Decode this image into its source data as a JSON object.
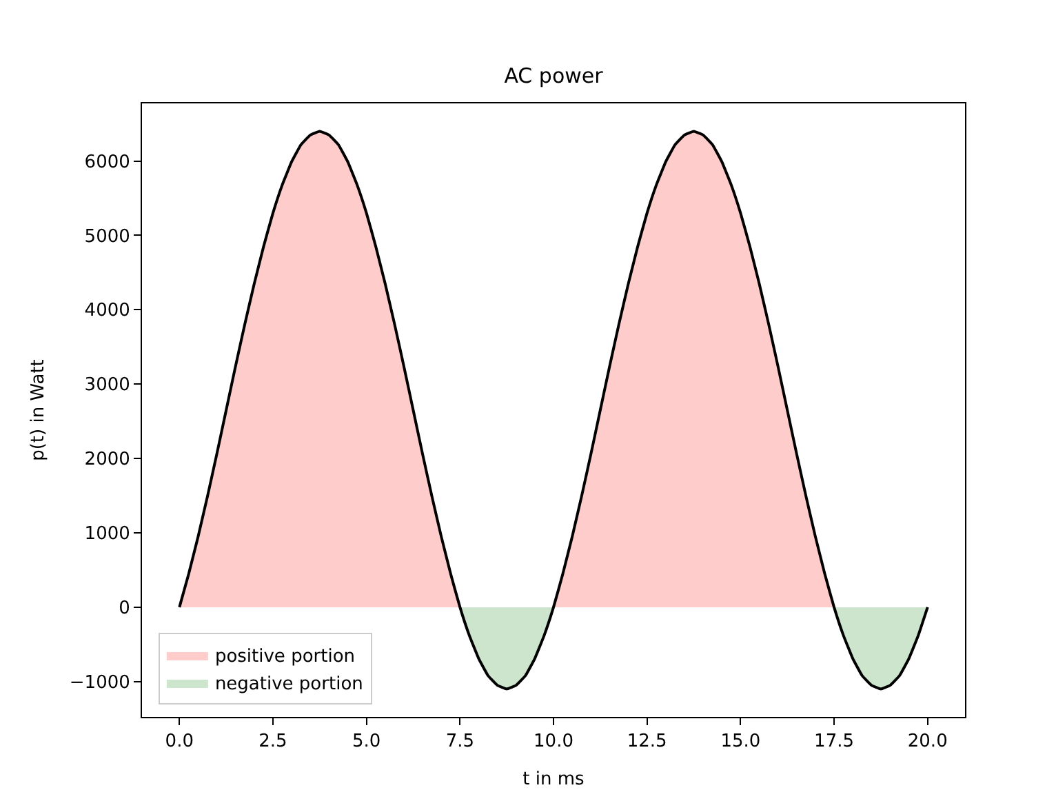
{
  "chart_data": {
    "type": "line",
    "title": "AC power",
    "xlabel": "t in ms",
    "ylabel": "p(t) in Watt",
    "x": [
      0,
      0.25,
      0.5,
      0.75,
      1,
      1.25,
      1.5,
      1.75,
      2,
      2.25,
      2.5,
      2.75,
      3,
      3.25,
      3.5,
      3.75,
      4,
      4.25,
      4.5,
      4.75,
      5,
      5.25,
      5.5,
      5.75,
      6,
      6.25,
      6.5,
      6.75,
      7,
      7.25,
      7.5,
      7.75,
      8,
      8.25,
      8.5,
      8.75,
      9,
      9.25,
      9.5,
      9.75,
      10,
      10.25,
      10.5,
      10.75,
      11,
      11.25,
      11.5,
      11.75,
      12,
      12.25,
      12.5,
      12.75,
      13,
      13.25,
      13.5,
      13.75,
      14,
      14.25,
      14.5,
      14.75,
      15,
      15.25,
      15.5,
      15.75,
      16,
      16.25,
      16.5,
      16.75,
      17,
      17.25,
      17.5,
      17.75,
      18,
      18.25,
      18.5,
      18.75,
      19,
      19.25,
      19.5,
      19.75,
      20
    ],
    "series": [
      {
        "type": "area",
        "name": "positive portion",
        "color": "#ffcccc",
        "values": [
          0,
          450,
          950,
          1490,
          2060,
          2650,
          3240,
          3810,
          4350,
          4850,
          5300,
          5680,
          5990,
          6220,
          6350,
          6400,
          6350,
          6220,
          5990,
          5680,
          5300,
          4850,
          4350,
          3810,
          3240,
          2650,
          2060,
          1490,
          950,
          450,
          0,
          0,
          0,
          0,
          0,
          0,
          0,
          0,
          0,
          0,
          0,
          450,
          950,
          1490,
          2060,
          2650,
          3240,
          3810,
          4350,
          4850,
          5300,
          5680,
          5990,
          6220,
          6350,
          6400,
          6350,
          6220,
          5990,
          5680,
          5300,
          4850,
          4350,
          3810,
          3240,
          2650,
          2060,
          1490,
          950,
          450,
          0,
          0,
          0,
          0,
          0,
          0,
          0,
          0,
          0,
          0,
          0
        ]
      },
      {
        "type": "area",
        "name": "negative portion",
        "color": "#cce5cc",
        "values": [
          0,
          0,
          0,
          0,
          0,
          0,
          0,
          0,
          0,
          0,
          0,
          0,
          0,
          0,
          0,
          0,
          0,
          0,
          0,
          0,
          0,
          0,
          0,
          0,
          0,
          0,
          0,
          0,
          0,
          0,
          0,
          -380,
          -690,
          -920,
          -1050,
          -1100,
          -1050,
          -920,
          -690,
          -380,
          0,
          0,
          0,
          0,
          0,
          0,
          0,
          0,
          0,
          0,
          0,
          0,
          0,
          0,
          0,
          0,
          0,
          0,
          0,
          0,
          0,
          0,
          0,
          0,
          0,
          0,
          0,
          0,
          0,
          0,
          0,
          -380,
          -690,
          -920,
          -1050,
          -1100,
          -1050,
          -920,
          -690,
          -380,
          0
        ]
      },
      {
        "color": "#000000",
        "values": [
          0,
          450,
          950,
          1490,
          2060,
          2650,
          3240,
          3810,
          4350,
          4850,
          5300,
          5680,
          5990,
          6220,
          6350,
          6400,
          6350,
          6220,
          5990,
          5680,
          5300,
          4850,
          4350,
          3810,
          3240,
          2650,
          2060,
          1490,
          950,
          450,
          0,
          -380,
          -690,
          -920,
          -1050,
          -1100,
          -1050,
          -920,
          -690,
          -380,
          0,
          450,
          950,
          1490,
          2060,
          2650,
          3240,
          3810,
          4350,
          4850,
          5300,
          5680,
          5990,
          6220,
          6350,
          6400,
          6350,
          6220,
          5990,
          5680,
          5300,
          4850,
          4350,
          3810,
          3240,
          2650,
          2060,
          1490,
          950,
          450,
          0,
          -380,
          -690,
          -920,
          -1050,
          -1100,
          -1050,
          -920,
          -690,
          -380,
          0
        ]
      }
    ],
    "xlim": [
      -1,
      21
    ],
    "xticks": [
      {
        "value": 0,
        "label": "0.0"
      },
      {
        "value": 2.5,
        "label": "2.5"
      },
      {
        "value": 5,
        "label": "5.0"
      },
      {
        "value": 7.5,
        "label": "7.5"
      },
      {
        "value": 10,
        "label": "10.0"
      },
      {
        "value": 12.5,
        "label": "12.5"
      },
      {
        "value": 15,
        "label": "15.0"
      },
      {
        "value": 17.5,
        "label": "17.5"
      },
      {
        "value": 20,
        "label": "20.0"
      }
    ],
    "ylim": [
      -1475,
      6775
    ],
    "yticks": [
      {
        "value": -1000,
        "label": "−1000"
      },
      0,
      1000,
      2000,
      3000,
      4000,
      5000,
      6000
    ],
    "legend": "bottom left"
  }
}
